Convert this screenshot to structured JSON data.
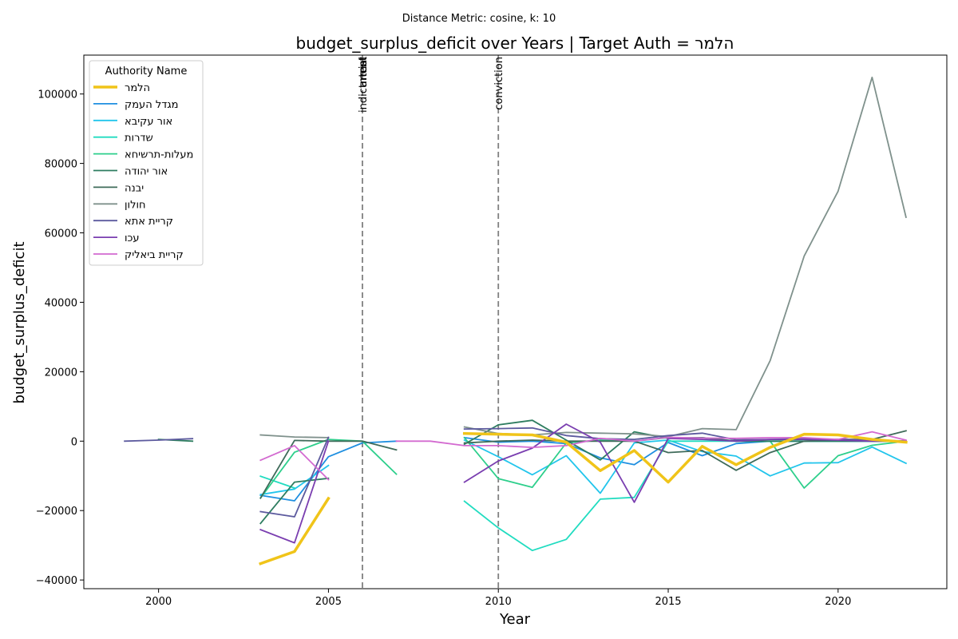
{
  "suptitle": "Distance Metric: cosine, k: 10",
  "chart_data": {
    "type": "line",
    "title": "budget_surplus_deficit over Years | Target Auth = הלמר",
    "xlabel": "Year",
    "ylabel": "budget_surplus_deficit",
    "xlim": [
      1997.8,
      2023.2
    ],
    "ylim": [
      -42500,
      111200
    ],
    "xticks": [
      2000,
      2005,
      2010,
      2015,
      2020
    ],
    "yticks": [
      -40000,
      -20000,
      0,
      20000,
      40000,
      60000,
      80000,
      100000
    ],
    "grid": false,
    "legend": {
      "title": "Authority Name",
      "placement": "top-left"
    },
    "events": [
      {
        "x": 2006,
        "labels": [
          "indictment",
          "arrest",
          "trial"
        ],
        "color": "#808080"
      },
      {
        "x": 2010,
        "labels": [
          "conviction"
        ],
        "color": "#808080"
      }
    ],
    "series": [
      {
        "name": "הלמר",
        "color": "#f0c419",
        "width": 3.5,
        "points": [
          [
            2003,
            -35300
          ],
          [
            2004,
            -31800
          ],
          [
            2005,
            -16500
          ],
          null,
          [
            2009,
            2200
          ],
          [
            2010,
            2000
          ],
          [
            2011,
            1800
          ],
          [
            2012,
            -300
          ],
          [
            2013,
            -8500
          ],
          [
            2014,
            -2700
          ],
          [
            2015,
            -11800
          ],
          [
            2016,
            -1500
          ],
          [
            2017,
            -6800
          ],
          [
            2018,
            -1800
          ],
          [
            2019,
            2000
          ],
          [
            2020,
            1800
          ],
          [
            2021,
            500
          ],
          [
            2022,
            -300
          ]
        ]
      },
      {
        "name": "מגדל העמק",
        "color": "#1f8fe0",
        "width": 1.8,
        "points": [
          [
            2003,
            -15600
          ],
          [
            2004,
            -17200
          ],
          [
            2005,
            -4500
          ],
          [
            2006,
            -500
          ],
          [
            2007,
            0
          ],
          null,
          [
            2009,
            1000
          ],
          [
            2010,
            -300
          ],
          [
            2011,
            0
          ],
          [
            2012,
            -700
          ],
          [
            2013,
            -4800
          ],
          [
            2014,
            -6800
          ],
          [
            2015,
            -400
          ],
          [
            2016,
            -4200
          ],
          [
            2017,
            -700
          ],
          [
            2018,
            0
          ],
          [
            2019,
            0
          ],
          [
            2020,
            0
          ],
          [
            2021,
            0
          ],
          [
            2022,
            0
          ]
        ]
      },
      {
        "name": "אור עקיבא",
        "color": "#22c5ec",
        "width": 1.8,
        "points": [
          [
            2003,
            -15400
          ],
          [
            2004,
            -13800
          ],
          [
            2005,
            -7000
          ],
          null,
          [
            2009,
            300
          ],
          [
            2010,
            -4500
          ],
          [
            2011,
            -9700
          ],
          [
            2012,
            -4200
          ],
          [
            2013,
            -15000
          ],
          [
            2014,
            -500
          ],
          [
            2015,
            300
          ],
          [
            2016,
            -3000
          ],
          [
            2017,
            -4300
          ],
          [
            2018,
            -10000
          ],
          [
            2019,
            -6300
          ],
          [
            2020,
            -6200
          ],
          [
            2021,
            -1700
          ],
          [
            2022,
            -6400
          ]
        ]
      },
      {
        "name": "שדרות",
        "color": "#20dcc0",
        "width": 1.8,
        "points": [
          [
            2003,
            -10100
          ],
          [
            2004,
            -13500
          ],
          null,
          [
            2009,
            -17300
          ],
          [
            2010,
            -25000
          ],
          [
            2011,
            -31500
          ],
          [
            2012,
            -28300
          ],
          [
            2013,
            -16700
          ],
          [
            2014,
            -16200
          ],
          [
            2015,
            0
          ],
          [
            2016,
            0
          ],
          [
            2017,
            0
          ],
          [
            2018,
            0
          ],
          [
            2019,
            0
          ],
          [
            2020,
            0
          ],
          [
            2021,
            0
          ],
          [
            2022,
            0
          ]
        ]
      },
      {
        "name": "מעלות-תרשיחא",
        "color": "#2ecf8c",
        "width": 1.8,
        "points": [
          [
            2003,
            -16400
          ],
          [
            2004,
            -3200
          ],
          [
            2005,
            500
          ],
          [
            2006,
            0
          ],
          [
            2007,
            -9500
          ],
          null,
          [
            2009,
            1000
          ],
          [
            2010,
            -10800
          ],
          [
            2011,
            -13300
          ],
          [
            2012,
            -500
          ],
          [
            2013,
            300
          ],
          [
            2014,
            0
          ],
          [
            2015,
            1000
          ],
          [
            2016,
            1000
          ],
          [
            2017,
            0
          ],
          [
            2018,
            0
          ],
          [
            2019,
            -13500
          ],
          [
            2020,
            -4200
          ],
          [
            2021,
            -1200
          ],
          [
            2022,
            0
          ]
        ]
      },
      {
        "name": "אור יהודה",
        "color": "#2e7d60",
        "width": 1.8,
        "points": [
          [
            2000,
            500
          ],
          [
            2001,
            0
          ],
          null,
          [
            2003,
            -23700
          ],
          [
            2004,
            -11800
          ],
          [
            2005,
            -10700
          ],
          null,
          [
            2009,
            -900
          ],
          [
            2010,
            4700
          ],
          [
            2011,
            6000
          ],
          [
            2012,
            300
          ],
          [
            2013,
            -5400
          ],
          [
            2014,
            2700
          ],
          [
            2015,
            800
          ],
          [
            2016,
            1000
          ],
          [
            2017,
            0
          ],
          [
            2018,
            0
          ],
          [
            2019,
            0
          ],
          [
            2020,
            0
          ],
          [
            2021,
            0
          ],
          [
            2022,
            0
          ]
        ]
      },
      {
        "name": "יבנה",
        "color": "#3f6b5a",
        "width": 1.8,
        "points": [
          [
            2003,
            -16400
          ],
          [
            2004,
            200
          ],
          [
            2005,
            0
          ],
          [
            2006,
            0
          ],
          [
            2007,
            -2500
          ],
          null,
          [
            2009,
            -500
          ],
          [
            2010,
            0
          ],
          [
            2011,
            300
          ],
          [
            2012,
            0
          ],
          [
            2013,
            0
          ],
          [
            2014,
            0
          ],
          [
            2015,
            -3300
          ],
          [
            2016,
            -2700
          ],
          [
            2017,
            -8400
          ],
          [
            2018,
            -3300
          ],
          [
            2019,
            0
          ],
          [
            2020,
            500
          ],
          [
            2021,
            500
          ],
          [
            2022,
            3000
          ]
        ]
      },
      {
        "name": "חולון",
        "color": "#7f918c",
        "width": 1.8,
        "points": [
          [
            2003,
            1800
          ],
          [
            2004,
            1200
          ],
          [
            2005,
            1000
          ],
          null,
          [
            2009,
            4100
          ],
          [
            2010,
            2200
          ],
          [
            2011,
            1800
          ],
          [
            2012,
            2500
          ],
          [
            2013,
            2300
          ],
          [
            2014,
            2100
          ],
          [
            2015,
            1300
          ],
          [
            2016,
            3600
          ],
          [
            2017,
            3300
          ],
          [
            2018,
            23200
          ],
          [
            2019,
            53300
          ],
          [
            2020,
            72000
          ],
          [
            2021,
            104800
          ],
          [
            2022,
            64500
          ]
        ]
      },
      {
        "name": "קריית אתא",
        "color": "#5c5a9e",
        "width": 1.8,
        "points": [
          [
            1999,
            0
          ],
          [
            2000,
            300
          ],
          [
            2001,
            700
          ],
          null,
          [
            2003,
            -20300
          ],
          [
            2004,
            -21800
          ],
          [
            2005,
            1100
          ],
          null,
          [
            2009,
            3500
          ],
          [
            2010,
            3600
          ],
          [
            2011,
            3800
          ],
          [
            2012,
            1600
          ],
          [
            2013,
            700
          ],
          [
            2014,
            500
          ],
          [
            2015,
            1600
          ],
          [
            2016,
            2300
          ],
          [
            2017,
            400
          ],
          [
            2018,
            500
          ],
          [
            2019,
            700
          ],
          [
            2020,
            500
          ],
          [
            2021,
            400
          ],
          [
            2022,
            0
          ]
        ]
      },
      {
        "name": "עכו",
        "color": "#7a3eb0",
        "width": 1.8,
        "points": [
          [
            2003,
            -25500
          ],
          [
            2004,
            -29300
          ],
          [
            2005,
            0
          ],
          null,
          [
            2009,
            -11800
          ],
          [
            2010,
            -5700
          ],
          [
            2011,
            -2000
          ],
          [
            2012,
            4900
          ],
          [
            2013,
            -300
          ],
          [
            2014,
            -17600
          ],
          [
            2015,
            800
          ],
          [
            2016,
            500
          ],
          [
            2017,
            0
          ],
          [
            2018,
            500
          ],
          [
            2019,
            500
          ],
          [
            2020,
            300
          ],
          [
            2021,
            0
          ],
          [
            2022,
            0
          ]
        ]
      },
      {
        "name": "קריית ביאליק",
        "color": "#d36ad0",
        "width": 1.8,
        "points": [
          [
            2003,
            -5500
          ],
          [
            2004,
            -1300
          ],
          [
            2005,
            -11100
          ],
          null,
          [
            2007,
            0
          ],
          [
            2008,
            0
          ],
          [
            2009,
            -1300
          ],
          [
            2010,
            -1300
          ],
          [
            2011,
            -1800
          ],
          [
            2012,
            -1300
          ],
          [
            2013,
            800
          ],
          [
            2014,
            0
          ],
          [
            2015,
            1100
          ],
          [
            2016,
            900
          ],
          [
            2017,
            800
          ],
          [
            2018,
            1000
          ],
          [
            2019,
            1000
          ],
          [
            2020,
            500
          ],
          [
            2021,
            2700
          ],
          [
            2022,
            300
          ]
        ]
      }
    ]
  }
}
